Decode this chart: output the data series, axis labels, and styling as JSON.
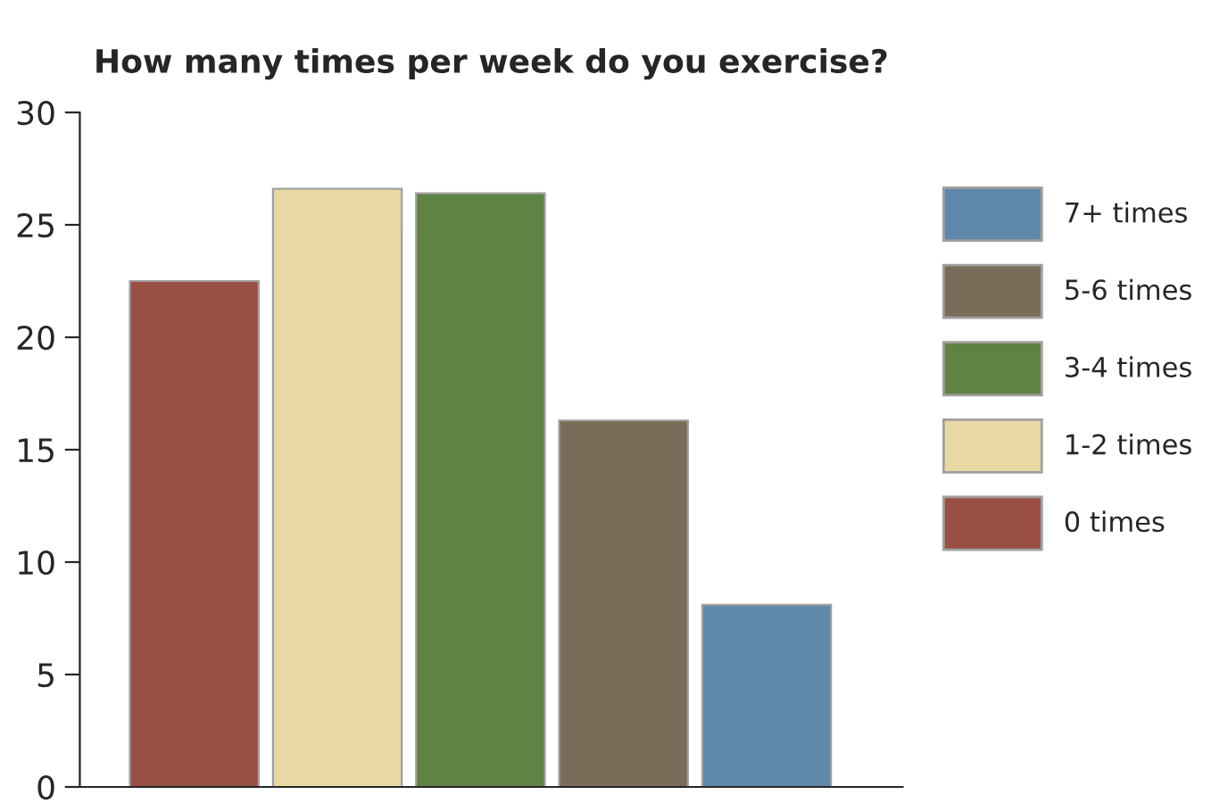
{
  "chart_data": {
    "type": "bar",
    "title": "How many times per week do you exercise?",
    "categories": [
      null,
      null,
      null,
      null,
      null
    ],
    "series": [
      {
        "name": "0 times",
        "color": "#9a4f44",
        "values": [
          22.5,
          null,
          null,
          null,
          null
        ]
      },
      {
        "name": "1-2 times",
        "color": "#e8d9a4",
        "values": [
          null,
          26.6,
          null,
          null,
          null
        ]
      },
      {
        "name": "3-4 times",
        "color": "#5f8345",
        "values": [
          null,
          null,
          26.4,
          null,
          null
        ]
      },
      {
        "name": "5-6 times",
        "color": "#7b6c5a",
        "values": [
          null,
          null,
          null,
          16.3,
          null
        ]
      },
      {
        "name": "7+ times",
        "color": "#5f88ab",
        "values": [
          null,
          null,
          null,
          null,
          8.1
        ]
      }
    ],
    "ylim": [
      0,
      30
    ],
    "yticks": [
      0,
      5,
      10,
      15,
      20,
      25,
      30
    ],
    "grid": false,
    "legend": "right"
  }
}
